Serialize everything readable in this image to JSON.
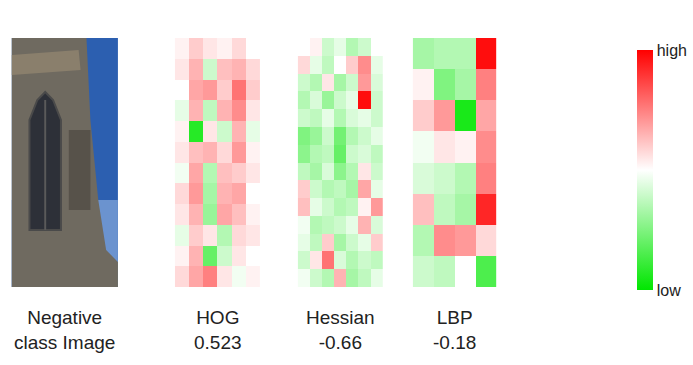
{
  "image": {
    "caption": [
      "Negative",
      "class Image"
    ]
  },
  "chart_data": [
    {
      "type": "heatmap",
      "title": "HOG",
      "score": 0.523,
      "tick_labels": false,
      "cells": [
        [
          0.05,
          0.2,
          0.1,
          0.05,
          0.15,
          0.0
        ],
        [
          0.1,
          0.3,
          -0.2,
          0.25,
          0.3,
          0.15
        ],
        [
          0.0,
          0.35,
          0.4,
          0.2,
          0.55,
          0.2
        ],
        [
          -0.1,
          0.3,
          -0.25,
          0.3,
          0.45,
          0.1
        ],
        [
          0.05,
          -0.85,
          0.1,
          -0.2,
          0.3,
          -0.1
        ],
        [
          0.1,
          0.25,
          0.3,
          0.15,
          0.4,
          0.05
        ],
        [
          -0.05,
          0.35,
          -0.3,
          0.25,
          0.2,
          0.1
        ],
        [
          0.15,
          0.4,
          -0.35,
          0.3,
          0.35,
          0.0
        ],
        [
          0.1,
          0.3,
          -0.4,
          0.35,
          0.25,
          0.05
        ],
        [
          -0.1,
          0.2,
          0.1,
          -0.3,
          0.15,
          0.1
        ],
        [
          0.05,
          0.3,
          -0.6,
          -0.2,
          0.1,
          0.0
        ],
        [
          0.15,
          0.35,
          0.5,
          0.1,
          -0.05,
          0.05
        ]
      ]
    },
    {
      "type": "heatmap",
      "title": "Hessian",
      "score": -0.66,
      "tick_labels": false,
      "cells": [
        [
          0.0,
          0.05,
          -0.2,
          -0.1,
          -0.3,
          -0.2,
          0.0
        ],
        [
          0.15,
          -0.1,
          -0.25,
          0.0,
          0.2,
          0.45,
          -0.1
        ],
        [
          -0.2,
          -0.3,
          0.1,
          -0.35,
          -0.2,
          0.4,
          -0.15
        ],
        [
          -0.3,
          -0.15,
          -0.4,
          -0.2,
          -0.1,
          0.95,
          -0.2
        ],
        [
          -0.2,
          -0.25,
          -0.1,
          -0.3,
          -0.15,
          -0.1,
          -0.2
        ],
        [
          -0.5,
          -0.4,
          -0.2,
          -0.55,
          -0.3,
          -0.2,
          -0.1
        ],
        [
          -0.45,
          -0.3,
          -0.25,
          -0.6,
          -0.2,
          -0.15,
          -0.25
        ],
        [
          -0.25,
          -0.35,
          -0.15,
          -0.45,
          -0.3,
          0.1,
          -0.2
        ],
        [
          0.2,
          -0.2,
          -0.3,
          -0.25,
          -0.35,
          0.35,
          -0.1
        ],
        [
          0.25,
          -0.1,
          -0.2,
          -0.3,
          -0.25,
          0.05,
          0.4
        ],
        [
          -0.05,
          -0.3,
          -0.25,
          -0.2,
          -0.1,
          0.3,
          -0.15
        ],
        [
          -0.1,
          -0.25,
          0.2,
          -0.35,
          -0.2,
          -0.1,
          0.2
        ],
        [
          -0.2,
          0.1,
          0.55,
          -0.15,
          -0.3,
          -0.2,
          -0.25
        ],
        [
          -0.05,
          -0.2,
          -0.3,
          0.3,
          -0.35,
          -0.25,
          -0.1
        ]
      ]
    },
    {
      "type": "heatmap",
      "title": "LBP",
      "score": -0.18,
      "tick_labels": false,
      "cells": [
        [
          -0.35,
          -0.3,
          -0.3,
          0.95
        ],
        [
          0.05,
          -0.5,
          -0.35,
          0.5
        ],
        [
          0.2,
          0.4,
          -0.9,
          0.35
        ],
        [
          -0.05,
          0.1,
          0.05,
          0.45
        ],
        [
          -0.15,
          -0.2,
          -0.3,
          0.5
        ],
        [
          0.25,
          -0.25,
          -0.35,
          0.85
        ],
        [
          -0.3,
          0.45,
          0.4,
          0.15
        ],
        [
          -0.2,
          -0.25,
          0.0,
          -0.7
        ]
      ]
    }
  ],
  "colorbar": {
    "range": [
      -1,
      1
    ],
    "ticks": [
      {
        "value": 1,
        "label": "high"
      },
      {
        "value": -1,
        "label": "low"
      }
    ]
  }
}
